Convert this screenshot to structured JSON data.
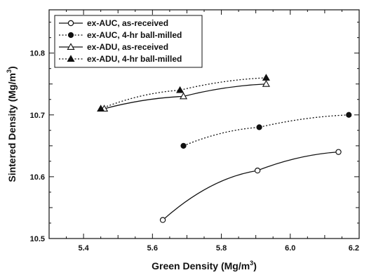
{
  "chart_data": {
    "type": "line",
    "xlabel": "Green Density (Mg/m",
    "xlabel_sup": "3",
    "xlabel_end": ")",
    "ylabel": "Sintered Density (Mg/m",
    "ylabel_sup": "3",
    "ylabel_end": ")",
    "xlim": [
      5.3,
      6.2
    ],
    "ylim": [
      10.5,
      10.87
    ],
    "xticks": [
      5.4,
      5.6,
      5.8,
      6.0,
      6.2
    ],
    "xtick_labels": [
      "5.4",
      "5.6",
      "5.8",
      "6.0",
      "6.2"
    ],
    "yticks": [
      10.5,
      10.6,
      10.7,
      10.8
    ],
    "ytick_labels": [
      "10.5",
      "10.6",
      "10.7",
      "10.8"
    ],
    "legend_position": "top-left",
    "grid": false,
    "series": [
      {
        "name": "ex-AUC, as-received",
        "marker": "open-circle",
        "line": "solid",
        "x": [
          5.63,
          5.905,
          6.14
        ],
        "y": [
          10.53,
          10.61,
          10.64
        ]
      },
      {
        "name": "ex-AUC, 4-hr ball-milled",
        "marker": "filled-circle",
        "line": "dotted",
        "x": [
          5.69,
          5.91,
          6.17
        ],
        "y": [
          10.65,
          10.68,
          10.7
        ]
      },
      {
        "name": "ex-ADU, as-received",
        "marker": "open-triangle",
        "line": "solid",
        "x": [
          5.46,
          5.69,
          5.93
        ],
        "y": [
          10.71,
          10.73,
          10.75
        ]
      },
      {
        "name": "ex-ADU, 4-hr ball-milled",
        "marker": "filled-triangle",
        "line": "dotted",
        "x": [
          5.45,
          5.68,
          5.93
        ],
        "y": [
          10.71,
          10.74,
          10.76
        ]
      }
    ]
  }
}
